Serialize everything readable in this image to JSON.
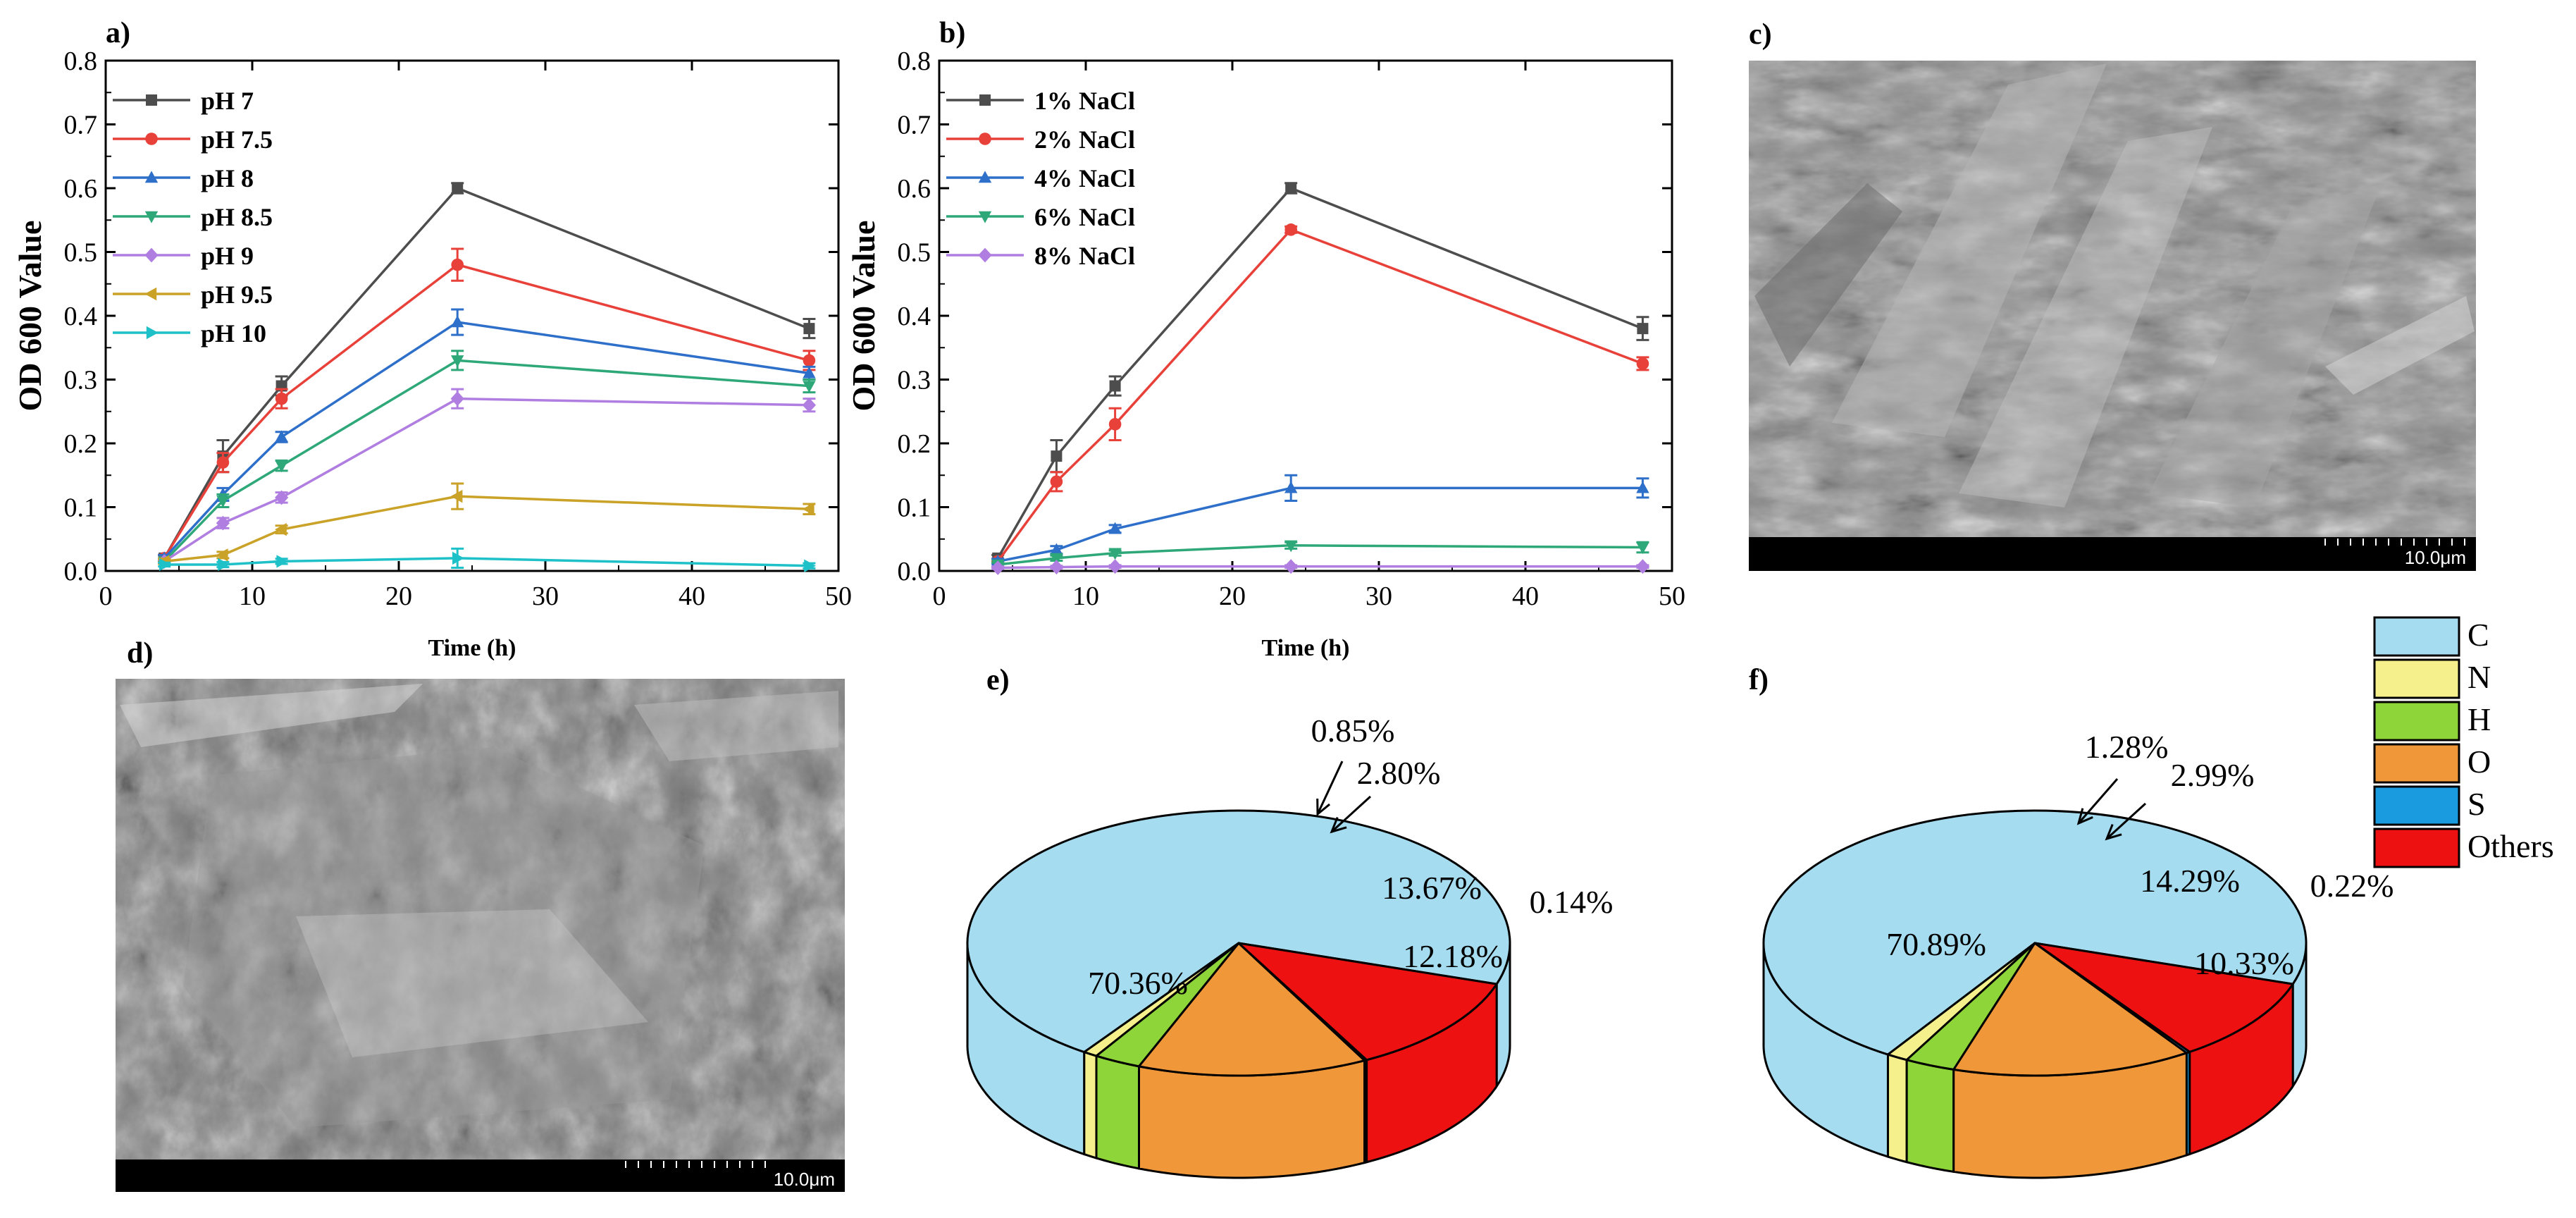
{
  "panels": {
    "a": {
      "label": "a)"
    },
    "b": {
      "label": "b)"
    },
    "c": {
      "label": "c)",
      "scalebar": "10.0μm"
    },
    "d": {
      "label": "d)",
      "scalebar": "10.0μm"
    },
    "e": {
      "label": "e)"
    },
    "f": {
      "label": "f)"
    }
  },
  "legend_elements": [
    {
      "label": "C",
      "color": "#a6dcf0"
    },
    {
      "label": "N",
      "color": "#f5f08c"
    },
    {
      "label": "H",
      "color": "#8ed53a"
    },
    {
      "label": "O",
      "color": "#f0973a"
    },
    {
      "label": "S",
      "color": "#1a9be0"
    },
    {
      "label": "Others",
      "color": "#ee1111"
    }
  ],
  "chart_data": [
    {
      "id": "a",
      "type": "line",
      "xlabel": "Time (h)",
      "ylabel": "OD 600 Value",
      "x": [
        4,
        8,
        12,
        24,
        48
      ],
      "xlim": [
        0,
        50
      ],
      "ylim": [
        0,
        0.8
      ],
      "xticks": [
        "0",
        "10",
        "20",
        "30",
        "40",
        "50"
      ],
      "yticks": [
        "0.0",
        "0.1",
        "0.2",
        "0.3",
        "0.4",
        "0.5",
        "0.6",
        "0.7",
        "0.8"
      ],
      "legend_position": "top-left",
      "series": [
        {
          "name": "pH 7",
          "color": "#4d4d4d",
          "marker": "square",
          "values": [
            0.02,
            0.18,
            0.29,
            0.6,
            0.38
          ],
          "errors": [
            0.005,
            0.025,
            0.015,
            0.008,
            0.015
          ]
        },
        {
          "name": "pH 7.5",
          "color": "#e8413a",
          "marker": "circle",
          "values": [
            0.02,
            0.17,
            0.27,
            0.48,
            0.33
          ],
          "errors": [
            0.005,
            0.015,
            0.015,
            0.025,
            0.015
          ]
        },
        {
          "name": "pH 8",
          "color": "#2e6fc9",
          "marker": "tri-up",
          "values": [
            0.02,
            0.12,
            0.21,
            0.39,
            0.31
          ],
          "errors": [
            0.005,
            0.01,
            0.008,
            0.02,
            0.01
          ]
        },
        {
          "name": "pH 8.5",
          "color": "#2ea878",
          "marker": "tri-down",
          "values": [
            0.015,
            0.11,
            0.165,
            0.33,
            0.29
          ],
          "errors": [
            0.004,
            0.01,
            0.008,
            0.015,
            0.01
          ]
        },
        {
          "name": "pH 9",
          "color": "#b07ee0",
          "marker": "diamond",
          "values": [
            0.015,
            0.075,
            0.115,
            0.27,
            0.26
          ],
          "errors": [
            0.004,
            0.008,
            0.008,
            0.015,
            0.01
          ]
        },
        {
          "name": "pH 9.5",
          "color": "#c9a227",
          "marker": "tri-left",
          "values": [
            0.015,
            0.025,
            0.065,
            0.117,
            0.097
          ],
          "errors": [
            0.004,
            0.005,
            0.006,
            0.02,
            0.008
          ]
        },
        {
          "name": "pH 10",
          "color": "#1fc1c9",
          "marker": "tri-right",
          "values": [
            0.01,
            0.01,
            0.015,
            0.02,
            0.008
          ],
          "errors": [
            0.003,
            0.004,
            0.004,
            0.015,
            0.004
          ]
        }
      ]
    },
    {
      "id": "b",
      "type": "line",
      "xlabel": "Time (h)",
      "ylabel": "OD 600 Value",
      "x": [
        4,
        8,
        12,
        24,
        48
      ],
      "xlim": [
        0,
        50
      ],
      "ylim": [
        0,
        0.8
      ],
      "xticks": [
        "0",
        "10",
        "20",
        "30",
        "40",
        "50"
      ],
      "yticks": [
        "0.0",
        "0.1",
        "0.2",
        "0.3",
        "0.4",
        "0.5",
        "0.6",
        "0.7",
        "0.8"
      ],
      "legend_position": "top-left",
      "series": [
        {
          "name": "1% NaCl",
          "color": "#4d4d4d",
          "marker": "square",
          "values": [
            0.02,
            0.18,
            0.29,
            0.6,
            0.38
          ],
          "errors": [
            0.005,
            0.025,
            0.015,
            0.008,
            0.018
          ]
        },
        {
          "name": "2% NaCl",
          "color": "#e8413a",
          "marker": "circle",
          "values": [
            0.015,
            0.14,
            0.23,
            0.535,
            0.325
          ],
          "errors": [
            0.004,
            0.015,
            0.025,
            0.005,
            0.01
          ]
        },
        {
          "name": "4% NaCl",
          "color": "#2e6fc9",
          "marker": "tri-up",
          "values": [
            0.015,
            0.033,
            0.066,
            0.13,
            0.13
          ],
          "errors": [
            0.004,
            0.006,
            0.006,
            0.02,
            0.015
          ]
        },
        {
          "name": "6% NaCl",
          "color": "#2ea878",
          "marker": "tri-down",
          "values": [
            0.01,
            0.02,
            0.028,
            0.04,
            0.037
          ],
          "errors": [
            0.003,
            0.004,
            0.004,
            0.005,
            0.008
          ]
        },
        {
          "name": "8% NaCl",
          "color": "#b07ee0",
          "marker": "diamond",
          "values": [
            0.005,
            0.006,
            0.007,
            0.007,
            0.007
          ],
          "errors": [
            0.002,
            0.002,
            0.002,
            0.002,
            0.002
          ]
        }
      ]
    },
    {
      "id": "e",
      "type": "pie",
      "slices": [
        {
          "name": "C",
          "value": 70.36,
          "label": "70.36%"
        },
        {
          "name": "N",
          "value": 0.85,
          "label": "0.85%"
        },
        {
          "name": "H",
          "value": 2.8,
          "label": "2.80%"
        },
        {
          "name": "O",
          "value": 13.67,
          "label": "13.67%"
        },
        {
          "name": "S",
          "value": 0.14,
          "label": "0.14%"
        },
        {
          "name": "Others",
          "value": 12.18,
          "label": "12.18%"
        }
      ]
    },
    {
      "id": "f",
      "type": "pie",
      "slices": [
        {
          "name": "C",
          "value": 70.89,
          "label": "70.89%"
        },
        {
          "name": "N",
          "value": 1.28,
          "label": "1.28%"
        },
        {
          "name": "H",
          "value": 2.99,
          "label": "2.99%"
        },
        {
          "name": "O",
          "value": 14.29,
          "label": "14.29%"
        },
        {
          "name": "S",
          "value": 0.22,
          "label": "0.22%"
        },
        {
          "name": "Others",
          "value": 10.33,
          "label": "10.33%"
        }
      ]
    }
  ]
}
